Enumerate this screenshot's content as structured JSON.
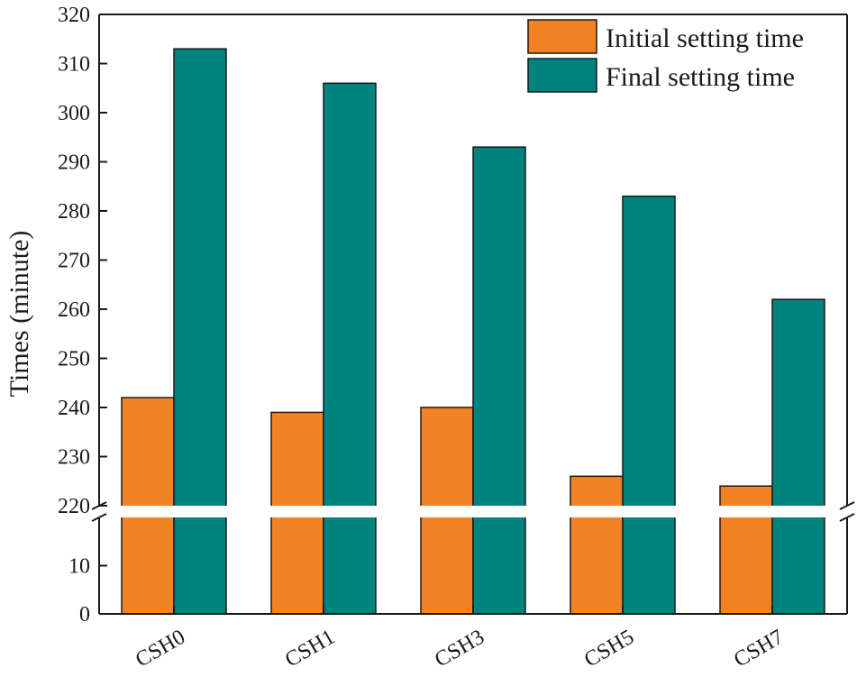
{
  "chart_data": {
    "type": "bar",
    "categories": [
      "CSH0",
      "CSH1",
      "CSH3",
      "CSH5",
      "CSH7"
    ],
    "series": [
      {
        "name": "Initial setting time",
        "values": [
          242,
          239,
          240,
          226,
          224
        ],
        "color": "#F28324"
      },
      {
        "name": "Final setting time",
        "values": [
          313,
          306,
          293,
          283,
          262
        ],
        "color": "#00827F"
      }
    ],
    "xlabel": "",
    "ylabel": "Times (minute)",
    "y_axis_break": {
      "lower_segment": {
        "ylim": [
          0,
          20
        ],
        "ticks": [
          "0",
          "10"
        ]
      },
      "upper_segment": {
        "ylim": [
          220,
          320
        ],
        "ticks": [
          "220",
          "230",
          "240",
          "250",
          "260",
          "270",
          "280",
          "290",
          "300",
          "310",
          "320"
        ]
      }
    },
    "legend_position": "top-right",
    "grid": false
  }
}
